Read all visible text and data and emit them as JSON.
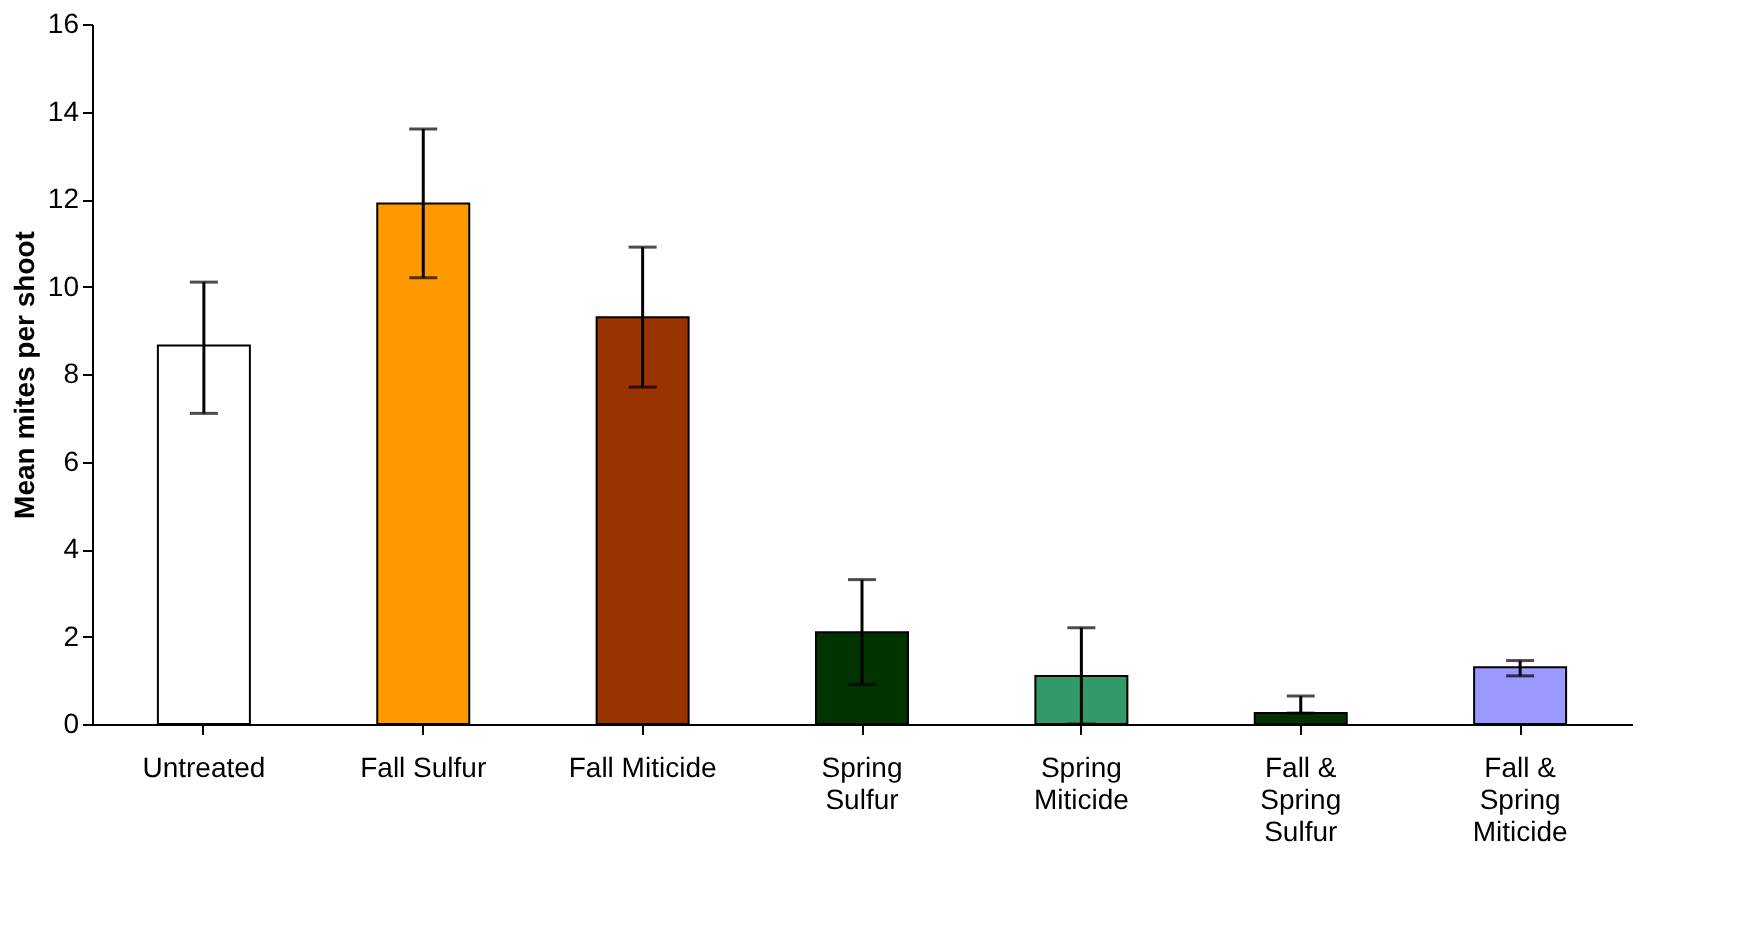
{
  "chart_data": {
    "type": "bar",
    "ylabel": "Mean mites per shoot",
    "categories": [
      "Untreated",
      "Fall Sulfur",
      "Fall Miticide",
      "Spring\nSulfur",
      "Spring\nMiticide",
      "Fall &\nSpring\nSulfur",
      "Fall &\nSpring\nMiticide"
    ],
    "values": [
      8.65,
      11.9,
      9.3,
      2.1,
      1.1,
      0.25,
      1.3
    ],
    "colors": [
      "#ffffff",
      "#ff9900",
      "#993300",
      "#003300",
      "#339966",
      "#003300",
      "#9999ff"
    ],
    "errors": [
      [
        7.1,
        10.1
      ],
      [
        10.2,
        13.6
      ],
      [
        7.7,
        10.9
      ],
      [
        0.9,
        3.3
      ],
      [
        0.0,
        2.2
      ],
      [
        0.25,
        0.64
      ],
      [
        1.1,
        1.45
      ]
    ],
    "ylim": [
      0,
      16
    ],
    "yticks": [
      0,
      2,
      4,
      6,
      8,
      10,
      12,
      14,
      16
    ],
    "grid": false
  }
}
